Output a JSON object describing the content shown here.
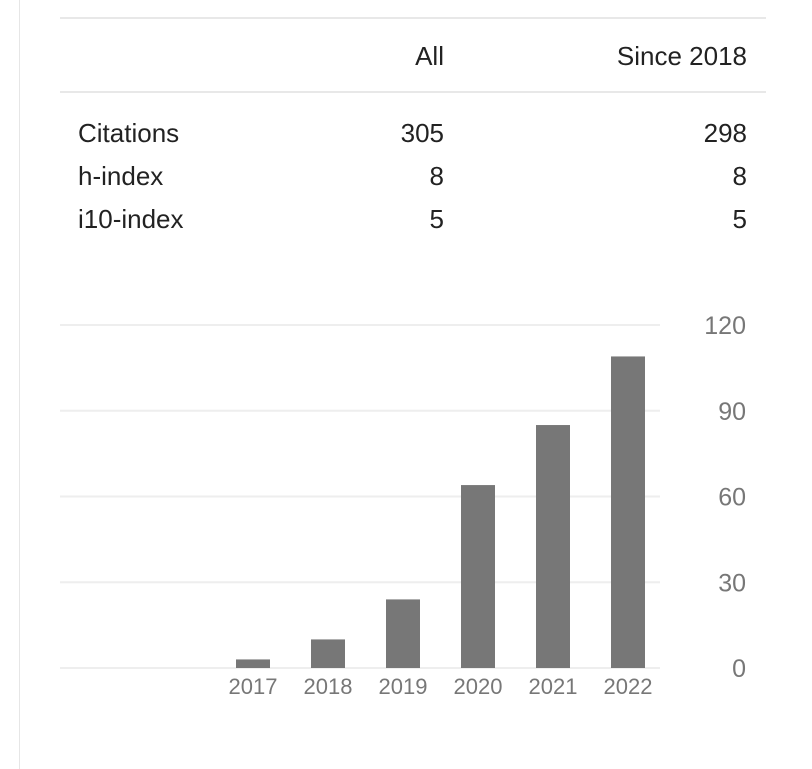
{
  "stats_table": {
    "headers": [
      "",
      "All",
      "Since 2018"
    ],
    "rows": [
      {
        "label": "Citations",
        "all": "305",
        "since": "298"
      },
      {
        "label": "h-index",
        "all": "8",
        "since": "8"
      },
      {
        "label": "i10-index",
        "all": "5",
        "since": "5"
      }
    ]
  },
  "chart_data": {
    "type": "bar",
    "categories": [
      "2017",
      "2018",
      "2019",
      "2020",
      "2021",
      "2022"
    ],
    "values": [
      3,
      10,
      24,
      64,
      85,
      109
    ],
    "yticks": [
      "0",
      "30",
      "60",
      "90",
      "120"
    ],
    "ylim": [
      0,
      120
    ],
    "grid": true,
    "bar_color": "#777777",
    "grid_color": "#eeeeee",
    "tick_color": "#777777"
  }
}
